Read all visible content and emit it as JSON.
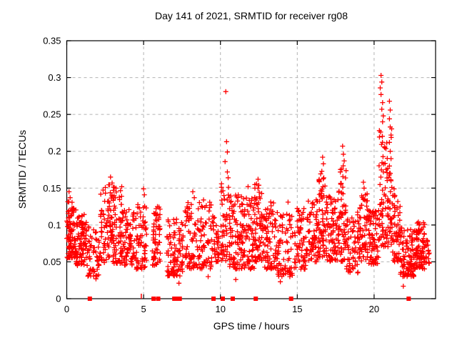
{
  "page": {
    "background": "#ffffff"
  },
  "chart_data": {
    "type": "scatter",
    "title": "Day 141 of 2021, SRMTID for receiver rg08",
    "xlabel": "GPS time / hours",
    "ylabel": "SRMTID / TECUs",
    "xlim": [
      0,
      24
    ],
    "ylim": [
      0,
      0.35
    ],
    "xticks": [
      0,
      5,
      10,
      15,
      20
    ],
    "xtick_labels": [
      "0",
      "5",
      "10",
      "15",
      "20"
    ],
    "yticks": [
      0,
      0.05,
      0.1,
      0.15,
      0.2,
      0.25,
      0.3,
      0.35
    ],
    "ytick_labels": [
      "0",
      "0.05",
      "0.1",
      "0.15",
      "0.2",
      "0.25",
      "0.3",
      "0.35"
    ],
    "grid": {
      "show": true,
      "color": "#b3b3b3",
      "dash": "4,4"
    },
    "border_color": "#000000",
    "marker": {
      "shape": "plus",
      "color": "#ff0000",
      "size": 7,
      "stroke": 1.3
    },
    "zero_marker": {
      "shape": "filled-square",
      "color": "#ff0000",
      "size": 6
    },
    "seed": 42,
    "series": [
      {
        "name": "SRMTID",
        "clusters": [
          [
            0.0,
            0.6,
            0.055,
            0.132,
            90
          ],
          [
            0.6,
            1.3,
            0.045,
            0.115,
            85
          ],
          [
            1.3,
            2.2,
            0.03,
            0.098,
            60
          ],
          [
            2.2,
            3.6,
            0.048,
            0.155,
            150
          ],
          [
            3.6,
            4.4,
            0.045,
            0.122,
            80
          ],
          [
            4.4,
            5.2,
            0.04,
            0.128,
            70
          ],
          [
            5.55,
            6.1,
            0.045,
            0.125,
            60
          ],
          [
            6.5,
            7.6,
            0.03,
            0.108,
            95
          ],
          [
            7.7,
            9.4,
            0.04,
            0.132,
            130
          ],
          [
            9.4,
            9.9,
            0.05,
            0.115,
            40
          ],
          [
            10.0,
            10.6,
            0.05,
            0.16,
            50
          ],
          [
            10.6,
            11.4,
            0.04,
            0.142,
            85
          ],
          [
            11.4,
            12.2,
            0.04,
            0.138,
            80
          ],
          [
            12.2,
            12.7,
            0.05,
            0.158,
            65
          ],
          [
            12.7,
            13.7,
            0.04,
            0.132,
            90
          ],
          [
            13.7,
            14.7,
            0.03,
            0.115,
            75
          ],
          [
            14.8,
            15.6,
            0.04,
            0.125,
            65
          ],
          [
            15.6,
            16.4,
            0.05,
            0.138,
            75
          ],
          [
            16.4,
            16.9,
            0.055,
            0.175,
            60
          ],
          [
            16.9,
            17.7,
            0.05,
            0.142,
            75
          ],
          [
            17.7,
            18.2,
            0.05,
            0.185,
            60
          ],
          [
            18.2,
            19.0,
            0.035,
            0.118,
            60
          ],
          [
            19.0,
            19.6,
            0.05,
            0.148,
            60
          ],
          [
            19.6,
            20.3,
            0.045,
            0.12,
            75
          ],
          [
            20.3,
            20.7,
            0.07,
            0.23,
            45
          ],
          [
            20.7,
            21.2,
            0.07,
            0.24,
            55
          ],
          [
            21.2,
            21.7,
            0.05,
            0.142,
            50
          ],
          [
            21.7,
            22.6,
            0.03,
            0.098,
            95
          ],
          [
            22.6,
            23.3,
            0.04,
            0.105,
            90
          ],
          [
            23.3,
            23.6,
            0.048,
            0.085,
            20
          ]
        ],
        "outliers": [
          [
            0.15,
            0.145
          ],
          [
            0.22,
            0.137
          ],
          [
            2.85,
            0.165
          ],
          [
            2.95,
            0.157
          ],
          [
            3.2,
            0.15
          ],
          [
            5.0,
            0.149
          ],
          [
            5.05,
            0.141
          ],
          [
            8.2,
            0.145
          ],
          [
            8.3,
            0.137
          ],
          [
            8.9,
            0.134
          ],
          [
            1.9,
            0.027
          ],
          [
            7.3,
            0.021
          ],
          [
            9.2,
            0.03
          ],
          [
            11.0,
            0.026
          ],
          [
            13.9,
            0.023
          ],
          [
            21.9,
            0.017
          ],
          [
            10.35,
            0.281
          ],
          [
            10.4,
            0.213
          ],
          [
            10.45,
            0.199
          ],
          [
            10.3,
            0.186
          ],
          [
            10.45,
            0.172
          ],
          [
            10.5,
            0.164
          ],
          [
            11.8,
            0.152
          ],
          [
            12.45,
            0.162
          ],
          [
            12.5,
            0.154
          ],
          [
            14.4,
            0.131
          ],
          [
            16.65,
            0.192
          ],
          [
            16.7,
            0.183
          ],
          [
            16.6,
            0.173
          ],
          [
            17.95,
            0.207
          ],
          [
            18.0,
            0.196
          ],
          [
            18.05,
            0.187
          ],
          [
            17.9,
            0.176
          ],
          [
            19.3,
            0.158
          ],
          [
            19.35,
            0.15
          ],
          [
            20.45,
            0.303
          ],
          [
            20.5,
            0.294
          ],
          [
            20.4,
            0.286
          ],
          [
            20.45,
            0.277
          ],
          [
            20.55,
            0.266
          ],
          [
            20.5,
            0.257
          ],
          [
            20.6,
            0.248
          ],
          [
            20.55,
            0.24
          ],
          [
            21.0,
            0.268
          ],
          [
            21.05,
            0.256
          ],
          [
            21.0,
            0.244
          ],
          [
            21.05,
            0.233
          ],
          [
            21.1,
            0.222
          ],
          [
            21.0,
            0.212
          ],
          [
            21.05,
            0.2
          ],
          [
            21.1,
            0.19
          ],
          [
            21.0,
            0.18
          ],
          [
            21.05,
            0.17
          ],
          [
            21.1,
            0.16
          ],
          [
            21.15,
            0.151
          ],
          [
            21.3,
            0.149
          ],
          [
            21.35,
            0.14
          ]
        ],
        "zero_markers_x": [
          1.5,
          5.65,
          5.95,
          7.0,
          7.15,
          7.35,
          9.55,
          10.15,
          10.8,
          12.3,
          14.6,
          22.25
        ],
        "zero_thin_ticks_x": [
          4.85
        ]
      }
    ]
  }
}
